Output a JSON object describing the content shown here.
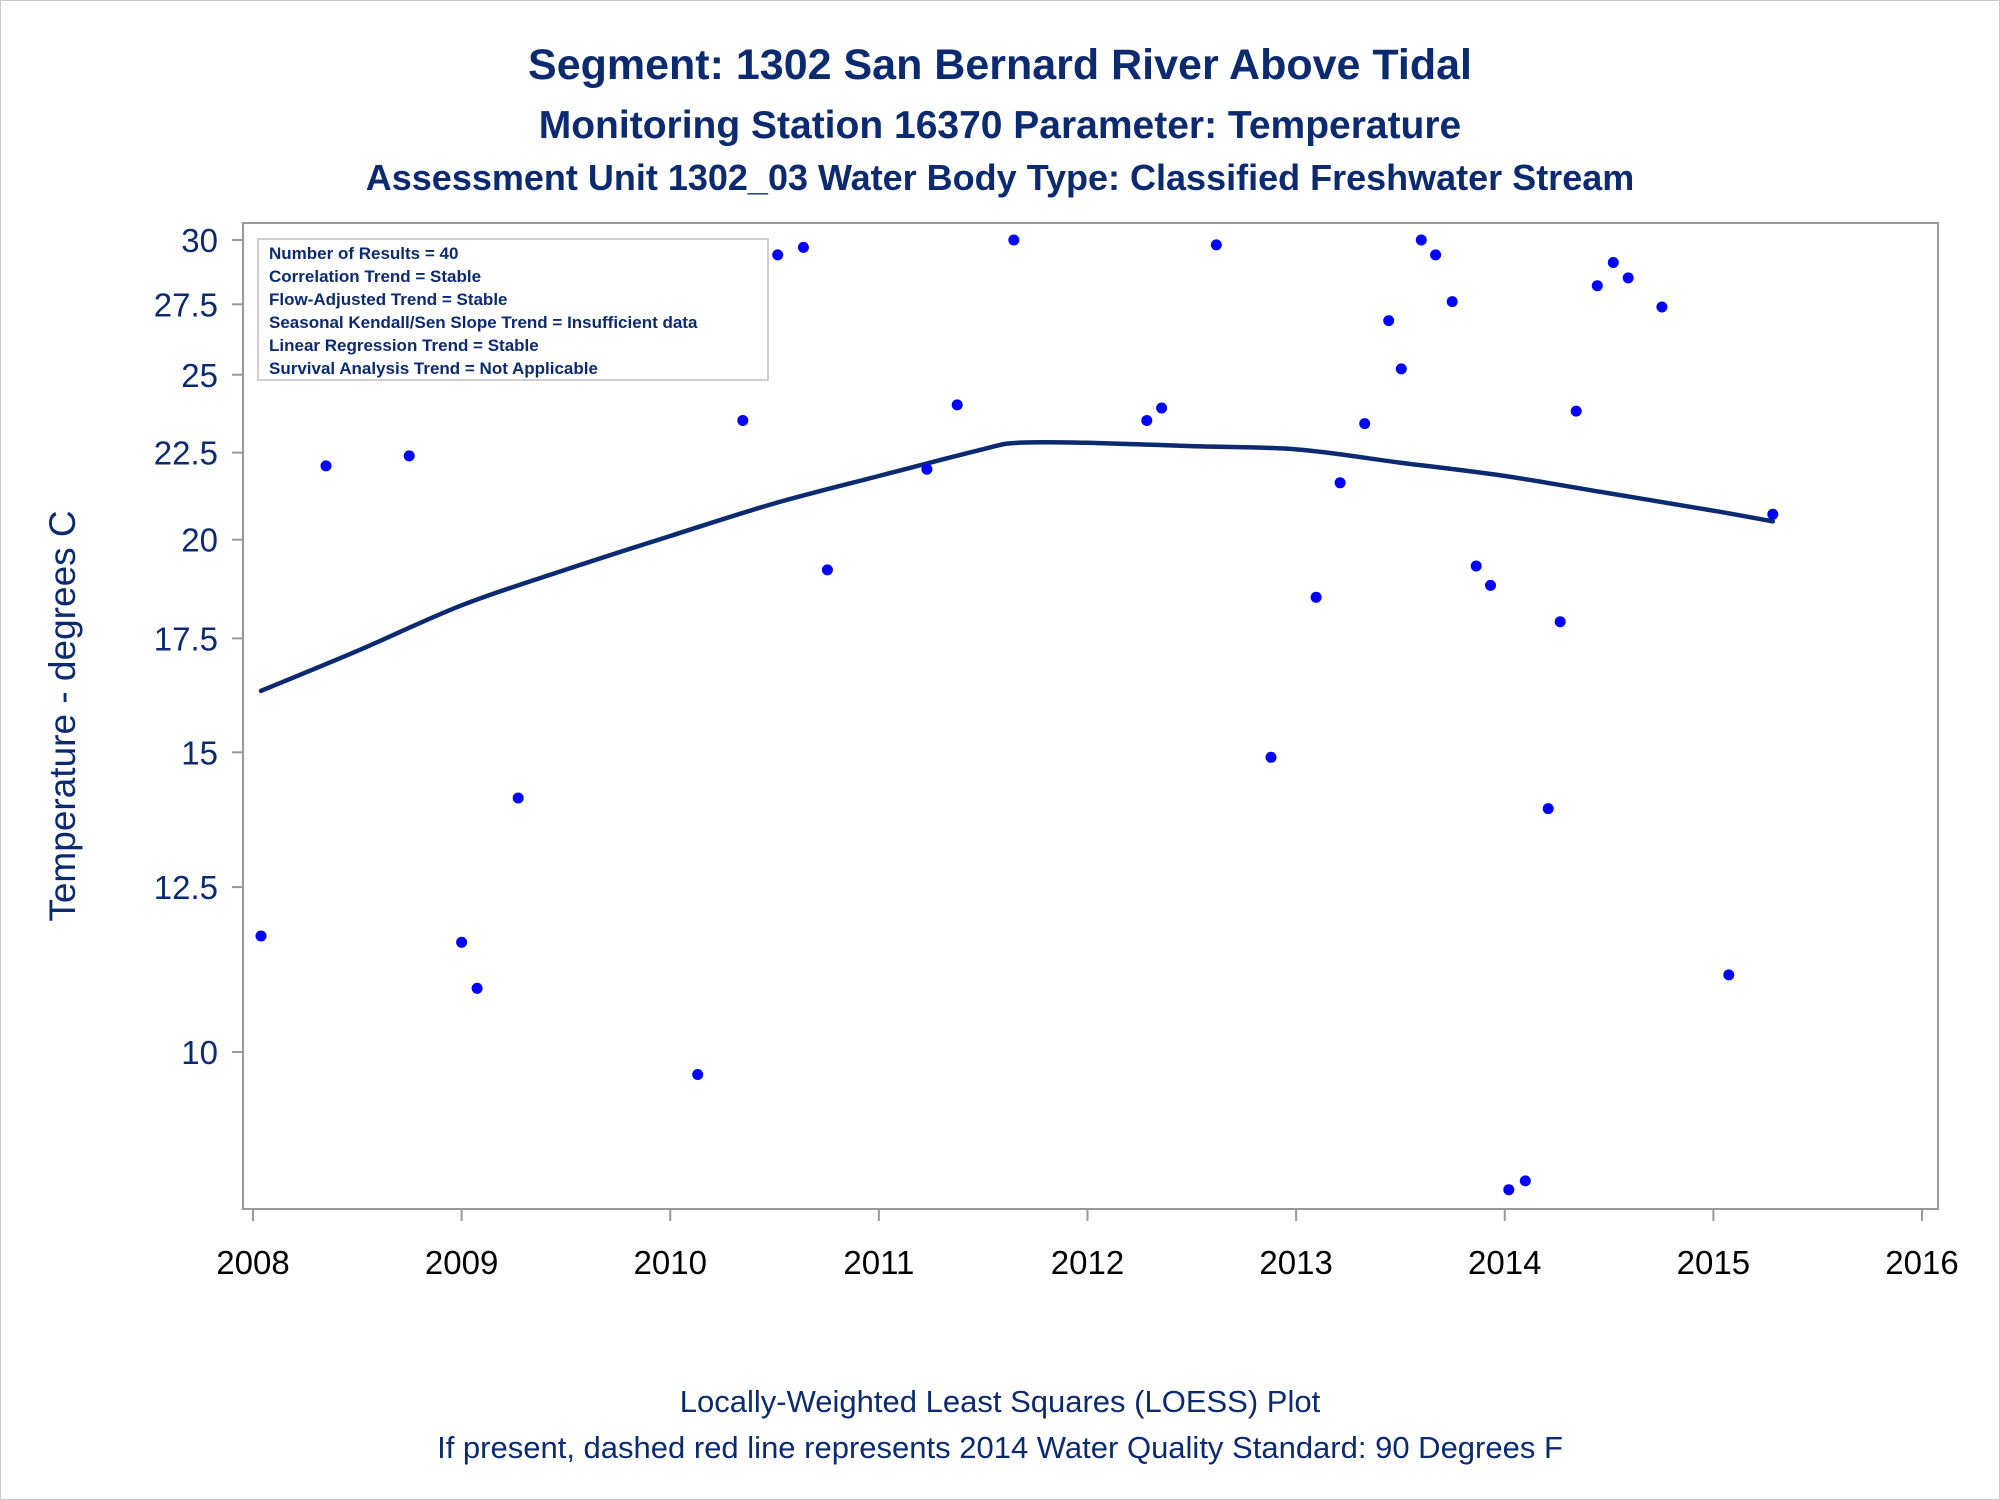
{
  "titles": {
    "line1": "Segment: 1302  San Bernard River Above Tidal",
    "line2": "Monitoring Station 16370 Parameter: Temperature",
    "line3": "Assessment Unit 1302_03   Water Body Type: Classified Freshwater Stream"
  },
  "legend": {
    "lines": [
      "Number of Results = 40",
      "Correlation Trend = Stable",
      "Flow-Adjusted Trend = Stable",
      "Seasonal Kendall/Sen Slope Trend = Insufficient data",
      "Linear Regression Trend = Stable",
      "Survival Analysis Trend = Not Applicable"
    ]
  },
  "footnotes": {
    "line1": "Locally-Weighted Least Squares (LOESS) Plot",
    "line2": "If present, dashed red line represents 2014 Water Quality Standard: 90   Degrees F"
  },
  "colors": {
    "points": "#0000ff",
    "loess_line": "#0b2a6f",
    "text": "#0b2a6f",
    "axis": "#999999"
  },
  "chart_data": {
    "type": "scatter",
    "ylabel": "Temperature - degrees C",
    "xlabel": "",
    "y_scale": "log",
    "xlim": [
      2008,
      2016
    ],
    "ylim": [
      8.2,
      30
    ],
    "x_ticks": [
      "2008",
      "2009",
      "2010",
      "2011",
      "2012",
      "2013",
      "2014",
      "2015",
      "2016"
    ],
    "y_ticks": [
      "10",
      "12.5",
      "15",
      "17.5",
      "20",
      "22.5",
      "25",
      "27.5",
      "30"
    ],
    "grid": false,
    "legend_position": "top-left",
    "series": [
      {
        "kind": "points",
        "points": [
          {
            "x": "2008-01-15",
            "y": 11.7
          },
          {
            "x": "2008-05-08",
            "y": 22.1
          },
          {
            "x": "2008-10-01",
            "y": 22.4
          },
          {
            "x": "2009-01-01",
            "y": 11.6
          },
          {
            "x": "2009-01-28",
            "y": 10.9
          },
          {
            "x": "2009-04-10",
            "y": 14.1
          },
          {
            "x": "2009-08-12",
            "y": 29.6
          },
          {
            "x": "2010-02-18",
            "y": 9.7
          },
          {
            "x": "2010-05-08",
            "y": 23.5
          },
          {
            "x": "2010-07-08",
            "y": 29.4
          },
          {
            "x": "2010-08-22",
            "y": 29.7
          },
          {
            "x": "2010-10-03",
            "y": 19.2
          },
          {
            "x": "2011-03-26",
            "y": 22.0
          },
          {
            "x": "2011-05-18",
            "y": 24.0
          },
          {
            "x": "2011-08-25",
            "y": 30.0
          },
          {
            "x": "2012-04-14",
            "y": 23.5
          },
          {
            "x": "2012-05-10",
            "y": 23.9
          },
          {
            "x": "2012-08-14",
            "y": 29.8
          },
          {
            "x": "2012-11-18",
            "y": 14.9
          },
          {
            "x": "2013-02-05",
            "y": 18.5
          },
          {
            "x": "2013-03-19",
            "y": 21.6
          },
          {
            "x": "2013-05-01",
            "y": 23.4
          },
          {
            "x": "2013-06-12",
            "y": 26.9
          },
          {
            "x": "2013-07-04",
            "y": 25.2
          },
          {
            "x": "2013-08-08",
            "y": 30.0
          },
          {
            "x": "2013-09-02",
            "y": 29.4
          },
          {
            "x": "2013-10-01",
            "y": 27.6
          },
          {
            "x": "2013-11-12",
            "y": 19.3
          },
          {
            "x": "2013-12-07",
            "y": 18.8
          },
          {
            "x": "2014-01-08",
            "y": 8.3
          },
          {
            "x": "2014-02-06",
            "y": 8.4
          },
          {
            "x": "2014-03-18",
            "y": 13.9
          },
          {
            "x": "2014-04-08",
            "y": 17.9
          },
          {
            "x": "2014-05-06",
            "y": 23.8
          },
          {
            "x": "2014-06-12",
            "y": 28.2
          },
          {
            "x": "2014-07-10",
            "y": 29.1
          },
          {
            "x": "2014-08-05",
            "y": 28.5
          },
          {
            "x": "2014-10-03",
            "y": 27.4
          },
          {
            "x": "2015-01-28",
            "y": 11.1
          },
          {
            "x": "2015-04-15",
            "y": 20.7
          }
        ]
      },
      {
        "kind": "loess",
        "points": [
          {
            "x": "2008-01-15",
            "y": 16.3
          },
          {
            "x": "2008-07-01",
            "y": 17.2
          },
          {
            "x": "2009-01-01",
            "y": 18.3
          },
          {
            "x": "2009-07-01",
            "y": 19.2
          },
          {
            "x": "2010-01-01",
            "y": 20.1
          },
          {
            "x": "2010-07-01",
            "y": 21.0
          },
          {
            "x": "2011-01-01",
            "y": 21.8
          },
          {
            "x": "2011-07-01",
            "y": 22.6
          },
          {
            "x": "2011-09-01",
            "y": 22.8
          },
          {
            "x": "2012-01-01",
            "y": 22.8
          },
          {
            "x": "2012-07-01",
            "y": 22.7
          },
          {
            "x": "2013-01-01",
            "y": 22.6
          },
          {
            "x": "2013-07-01",
            "y": 22.2
          },
          {
            "x": "2014-01-01",
            "y": 21.8
          },
          {
            "x": "2014-07-01",
            "y": 21.3
          },
          {
            "x": "2015-01-01",
            "y": 20.8
          },
          {
            "x": "2015-04-15",
            "y": 20.5
          }
        ]
      }
    ]
  }
}
